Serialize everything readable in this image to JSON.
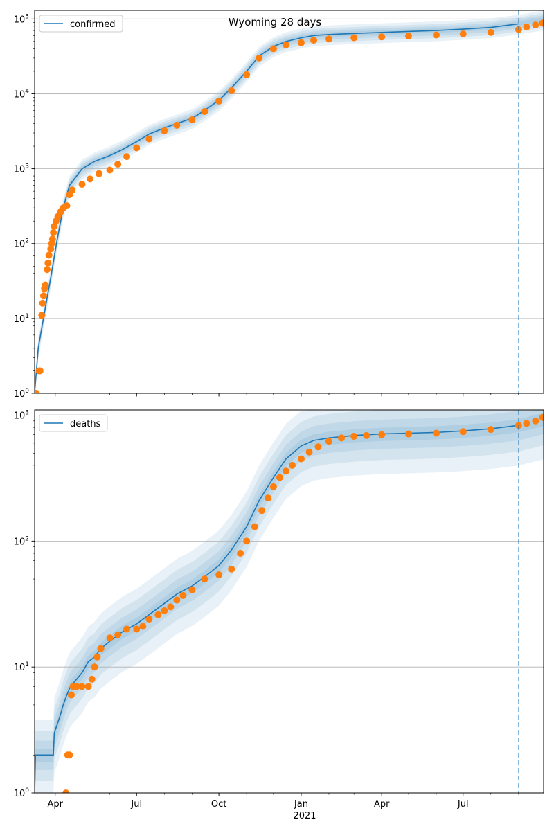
{
  "figure": {
    "title": "Wyoming 28 days"
  },
  "chart_data": [
    {
      "type": "line",
      "yscale": "log",
      "ylim": [
        1,
        130000
      ],
      "xlim": [
        "2020-03-09",
        "2021-09-29"
      ],
      "x_tick_labels": [
        "Apr",
        "Jul",
        "Oct",
        "Jan",
        "Apr",
        "Jul"
      ],
      "x_tick_dates": [
        "2020-04-01",
        "2020-07-01",
        "2020-10-01",
        "2021-01-01",
        "2021-04-01",
        "2021-07-01"
      ],
      "x_year_label": "2021",
      "y_tick_labels": [
        "10^0",
        "10^1",
        "10^2",
        "10^3",
        "10^4",
        "10^5"
      ],
      "y_tick_values": [
        1,
        10,
        100,
        1000,
        10000,
        100000
      ],
      "grid": true,
      "legend": "upper left",
      "forecast_start": "2021-09-01",
      "model_series": {
        "name": "confirmed",
        "color": "#1f77b4",
        "x": [
          "2020-03-09",
          "2020-03-13",
          "2020-03-20",
          "2020-03-27",
          "2020-04-03",
          "2020-04-10",
          "2020-04-17",
          "2020-05-01",
          "2020-05-15",
          "2020-06-01",
          "2020-06-15",
          "2020-07-01",
          "2020-07-15",
          "2020-08-01",
          "2020-08-15",
          "2020-09-01",
          "2020-09-15",
          "2020-10-01",
          "2020-10-15",
          "2020-11-01",
          "2020-11-15",
          "2020-12-01",
          "2020-12-15",
          "2021-01-01",
          "2021-01-15",
          "2021-02-01",
          "2021-03-01",
          "2021-04-01",
          "2021-05-01",
          "2021-06-01",
          "2021-07-01",
          "2021-08-01",
          "2021-09-01"
        ],
        "y": [
          1,
          4,
          12,
          35,
          110,
          300,
          600,
          1000,
          1250,
          1500,
          1800,
          2300,
          2900,
          3500,
          4000,
          4700,
          6000,
          8200,
          12000,
          20000,
          32000,
          43000,
          50000,
          56000,
          60000,
          62000,
          64000,
          66000,
          68000,
          70000,
          73000,
          77000,
          86000
        ]
      },
      "model_band": {
        "x": [
          "2020-03-09",
          "2020-03-13",
          "2020-03-20",
          "2020-03-27",
          "2020-04-03",
          "2020-04-10",
          "2020-04-17",
          "2020-05-01",
          "2020-05-15",
          "2020-06-01",
          "2020-06-15",
          "2020-07-01",
          "2020-07-15",
          "2020-08-01",
          "2020-08-15",
          "2020-09-01",
          "2020-09-15",
          "2020-10-01",
          "2020-10-15",
          "2020-11-01",
          "2020-11-15",
          "2020-12-01",
          "2020-12-15",
          "2021-01-01",
          "2021-01-15",
          "2021-02-01",
          "2021-03-01",
          "2021-04-01",
          "2021-05-01",
          "2021-06-01",
          "2021-07-01",
          "2021-08-01",
          "2021-09-01",
          "2021-09-29"
        ],
        "y": [
          1,
          4,
          12,
          35,
          110,
          300,
          600,
          1000,
          1250,
          1500,
          1800,
          2300,
          2900,
          3500,
          4000,
          4700,
          6000,
          8200,
          12000,
          20000,
          32000,
          43000,
          50000,
          56000,
          60000,
          62000,
          64000,
          66000,
          68000,
          70000,
          73000,
          77000,
          86000,
          98000
        ]
      },
      "observed_points": {
        "color": "#ff7f0e",
        "x": [
          "2020-03-11",
          "2020-03-14",
          "2020-03-15",
          "2020-03-17",
          "2020-03-18",
          "2020-03-19",
          "2020-03-20",
          "2020-03-21",
          "2020-03-23",
          "2020-03-24",
          "2020-03-25",
          "2020-03-27",
          "2020-03-28",
          "2020-03-29",
          "2020-03-30",
          "2020-03-31",
          "2020-04-02",
          "2020-04-04",
          "2020-04-07",
          "2020-04-10",
          "2020-04-14",
          "2020-04-17",
          "2020-04-20",
          "2020-05-01",
          "2020-05-10",
          "2020-05-20",
          "2020-06-01",
          "2020-06-10",
          "2020-06-20",
          "2020-07-01",
          "2020-07-15",
          "2020-08-01",
          "2020-08-15",
          "2020-09-01",
          "2020-09-15",
          "2020-10-01",
          "2020-10-15",
          "2020-11-01",
          "2020-11-15",
          "2020-12-01",
          "2020-12-15",
          "2021-01-01",
          "2021-01-15",
          "2021-02-01",
          "2021-03-01",
          "2021-04-01",
          "2021-05-01",
          "2021-06-01",
          "2021-07-01",
          "2021-08-01",
          "2021-09-01",
          "2021-09-10",
          "2021-09-20",
          "2021-09-28"
        ],
        "y": [
          1,
          2,
          2,
          11,
          16,
          20,
          25,
          28,
          45,
          55,
          70,
          85,
          100,
          115,
          140,
          170,
          200,
          230,
          265,
          300,
          320,
          450,
          520,
          620,
          730,
          860,
          960,
          1150,
          1450,
          1900,
          2500,
          3200,
          3800,
          4500,
          5800,
          8000,
          11000,
          18000,
          30000,
          40000,
          45000,
          48000,
          52000,
          54000,
          56000,
          57500,
          59000,
          61000,
          63000,
          66000,
          72000,
          78000,
          83000,
          88000
        ]
      }
    },
    {
      "type": "line",
      "yscale": "log",
      "ylim": [
        1,
        1100
      ],
      "xlim": [
        "2020-03-09",
        "2021-09-29"
      ],
      "x_tick_labels": [
        "Apr",
        "Jul",
        "Oct",
        "Jan",
        "Apr",
        "Jul"
      ],
      "x_tick_dates": [
        "2020-04-01",
        "2020-07-01",
        "2020-10-01",
        "2021-01-01",
        "2021-04-01",
        "2021-07-01"
      ],
      "x_year_label": "2021",
      "y_tick_labels": [
        "10^0",
        "10^1",
        "10^2",
        "10^3"
      ],
      "y_tick_values": [
        1,
        10,
        100,
        1000
      ],
      "grid": true,
      "legend": "upper left",
      "forecast_start": "2021-09-01",
      "model_series": {
        "name": "deaths",
        "color": "#1f77b4",
        "x": [
          "2020-03-09",
          "2020-03-10",
          "2020-03-30",
          "2020-03-31",
          "2020-04-06",
          "2020-04-10",
          "2020-04-14",
          "2020-04-18",
          "2020-04-25",
          "2020-05-01",
          "2020-05-08",
          "2020-05-15",
          "2020-05-22",
          "2020-06-01",
          "2020-06-15",
          "2020-07-01",
          "2020-07-15",
          "2020-08-01",
          "2020-08-15",
          "2020-09-01",
          "2020-09-15",
          "2020-10-01",
          "2020-10-15",
          "2020-11-01",
          "2020-11-15",
          "2020-12-01",
          "2020-12-15",
          "2021-01-01",
          "2021-01-15",
          "2021-02-01",
          "2021-03-01",
          "2021-04-01",
          "2021-05-01",
          "2021-06-01",
          "2021-07-01",
          "2021-08-01",
          "2021-09-01"
        ],
        "y": [
          1,
          2,
          2,
          3,
          4,
          5,
          6,
          7,
          8,
          9,
          11,
          12,
          14,
          16,
          19,
          22,
          26,
          32,
          38,
          44,
          52,
          64,
          85,
          130,
          210,
          320,
          450,
          570,
          630,
          660,
          690,
          710,
          720,
          730,
          750,
          780,
          830
        ]
      },
      "model_band": {
        "x": [
          "2020-03-09",
          "2020-03-10",
          "2020-03-30",
          "2020-03-31",
          "2020-04-06",
          "2020-04-10",
          "2020-04-14",
          "2020-04-18",
          "2020-04-25",
          "2020-05-01",
          "2020-05-08",
          "2020-05-15",
          "2020-05-22",
          "2020-06-01",
          "2020-06-15",
          "2020-07-01",
          "2020-07-15",
          "2020-08-01",
          "2020-08-15",
          "2020-09-01",
          "2020-09-15",
          "2020-10-01",
          "2020-10-15",
          "2020-11-01",
          "2020-11-15",
          "2020-12-01",
          "2020-12-15",
          "2021-01-01",
          "2021-01-15",
          "2021-02-01",
          "2021-03-01",
          "2021-04-01",
          "2021-05-01",
          "2021-06-01",
          "2021-07-01",
          "2021-08-01",
          "2021-09-01",
          "2021-09-29"
        ],
        "y": [
          1,
          2,
          2,
          3,
          4,
          5,
          6,
          7,
          8,
          9,
          11,
          12,
          14,
          16,
          19,
          22,
          26,
          32,
          38,
          44,
          52,
          64,
          85,
          130,
          210,
          320,
          450,
          570,
          630,
          660,
          690,
          710,
          720,
          730,
          750,
          780,
          830,
          930
        ]
      },
      "observed_points": {
        "color": "#ff7f0e",
        "x": [
          "2020-04-13",
          "2020-04-15",
          "2020-04-17",
          "2020-04-19",
          "2020-04-21",
          "2020-04-25",
          "2020-05-01",
          "2020-05-08",
          "2020-05-12",
          "2020-05-15",
          "2020-05-18",
          "2020-05-22",
          "2020-06-01",
          "2020-06-10",
          "2020-06-20",
          "2020-07-01",
          "2020-07-08",
          "2020-07-15",
          "2020-07-25",
          "2020-08-01",
          "2020-08-08",
          "2020-08-15",
          "2020-08-22",
          "2020-09-01",
          "2020-09-15",
          "2020-10-01",
          "2020-10-15",
          "2020-10-25",
          "2020-11-01",
          "2020-11-10",
          "2020-11-18",
          "2020-11-25",
          "2020-12-01",
          "2020-12-08",
          "2020-12-15",
          "2020-12-22",
          "2021-01-01",
          "2021-01-10",
          "2021-01-20",
          "2021-02-01",
          "2021-02-15",
          "2021-03-01",
          "2021-03-15",
          "2021-04-01",
          "2021-05-01",
          "2021-06-01",
          "2021-07-01",
          "2021-08-01",
          "2021-09-01",
          "2021-09-10",
          "2021-09-20",
          "2021-09-28"
        ],
        "y": [
          1,
          2,
          2,
          6,
          7,
          7,
          7,
          7,
          8,
          10,
          12,
          14,
          17,
          18,
          20,
          20,
          21,
          24,
          26,
          28,
          30,
          34,
          37,
          41,
          50,
          54,
          60,
          80,
          100,
          130,
          175,
          220,
          270,
          320,
          360,
          400,
          450,
          510,
          560,
          620,
          660,
          680,
          690,
          700,
          710,
          720,
          740,
          770,
          830,
          860,
          900,
          960
        ]
      }
    }
  ]
}
